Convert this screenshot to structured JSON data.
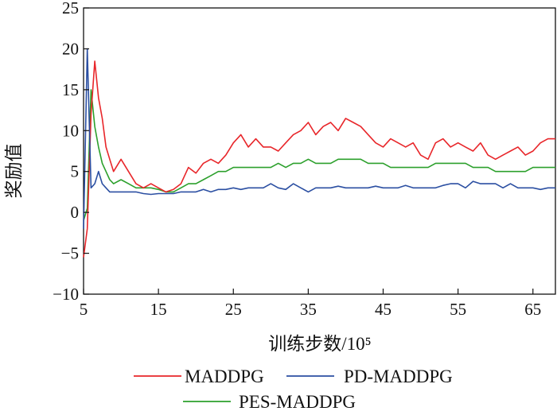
{
  "chart_data": {
    "type": "line",
    "title": "",
    "xlabel": "训练步数/10⁵",
    "ylabel": "奖励值",
    "xlim": [
      5,
      68
    ],
    "ylim": [
      -10,
      25
    ],
    "xticks": [
      5,
      15,
      25,
      35,
      45,
      55,
      65
    ],
    "yticks": [
      -10,
      -5,
      0,
      5,
      10,
      15,
      20,
      25
    ],
    "xtick_labels": [
      "5",
      "15",
      "25",
      "35",
      "45",
      "55",
      "65"
    ],
    "ytick_labels": [
      "−10",
      "−5",
      "0",
      "5",
      "10",
      "15",
      "20",
      "25"
    ],
    "grid": false,
    "legend_position": "bottom",
    "x": [
      5,
      5.5,
      6,
      6.5,
      7,
      7.5,
      8,
      8.5,
      9,
      10,
      11,
      12,
      13,
      14,
      15,
      16,
      17,
      18,
      19,
      20,
      21,
      22,
      23,
      24,
      25,
      26,
      27,
      28,
      29,
      30,
      31,
      32,
      33,
      34,
      35,
      36,
      37,
      38,
      39,
      40,
      41,
      42,
      43,
      44,
      45,
      46,
      47,
      48,
      49,
      50,
      51,
      52,
      53,
      54,
      55,
      56,
      57,
      58,
      59,
      60,
      61,
      62,
      63,
      64,
      65,
      66,
      67,
      68
    ],
    "series": [
      {
        "name": "MADDPG",
        "color": "#e8262a",
        "values": [
          -5.5,
          -2.0,
          12.0,
          18.5,
          14.0,
          11.5,
          8.0,
          6.5,
          5.0,
          6.5,
          5.0,
          3.5,
          3.0,
          3.5,
          3.0,
          2.5,
          2.8,
          3.5,
          5.5,
          4.8,
          6.0,
          6.5,
          6.0,
          7.0,
          8.5,
          9.5,
          8.0,
          9.0,
          8.0,
          8.0,
          7.5,
          8.5,
          9.5,
          10.0,
          11.0,
          9.5,
          10.5,
          11.0,
          10.0,
          11.5,
          11.0,
          10.5,
          9.5,
          8.5,
          8.0,
          9.0,
          8.5,
          8.0,
          8.5,
          7.0,
          6.5,
          8.5,
          9.0,
          8.0,
          8.5,
          8.0,
          7.5,
          8.5,
          7.0,
          6.5,
          7.0,
          7.5,
          8.0,
          7.0,
          7.5,
          8.5,
          9.0,
          9.0
        ]
      },
      {
        "name": "PD-MADDPG",
        "color": "#2b4fa2",
        "values": [
          -2.0,
          20.0,
          3.0,
          3.5,
          5.0,
          3.5,
          3.0,
          2.5,
          2.5,
          2.5,
          2.5,
          2.5,
          2.3,
          2.2,
          2.3,
          2.3,
          2.3,
          2.5,
          2.5,
          2.5,
          2.8,
          2.5,
          2.8,
          2.8,
          3.0,
          2.8,
          3.0,
          3.0,
          3.0,
          3.5,
          3.0,
          2.8,
          3.5,
          3.0,
          2.5,
          3.0,
          3.0,
          3.0,
          3.2,
          3.0,
          3.0,
          3.0,
          3.0,
          3.2,
          3.0,
          3.0,
          3.0,
          3.3,
          3.0,
          3.0,
          3.0,
          3.0,
          3.3,
          3.5,
          3.5,
          3.0,
          3.8,
          3.5,
          3.5,
          3.5,
          3.0,
          3.5,
          3.0,
          3.0,
          3.0,
          2.8,
          3.0,
          3.0
        ]
      },
      {
        "name": "PES-MADDPG",
        "color": "#2ca02c",
        "values": [
          -1.0,
          0.5,
          15.0,
          10.5,
          8.0,
          6.0,
          5.0,
          4.0,
          3.5,
          4.0,
          3.5,
          3.0,
          3.0,
          3.0,
          2.8,
          2.5,
          2.5,
          3.0,
          3.5,
          3.5,
          4.0,
          4.5,
          5.0,
          5.0,
          5.5,
          5.5,
          5.5,
          5.5,
          5.5,
          5.5,
          6.0,
          5.5,
          6.0,
          6.0,
          6.5,
          6.0,
          6.0,
          6.0,
          6.5,
          6.5,
          6.5,
          6.5,
          6.0,
          6.0,
          6.0,
          5.5,
          5.5,
          5.5,
          5.5,
          5.5,
          5.5,
          6.0,
          6.0,
          6.0,
          6.0,
          6.0,
          5.5,
          5.5,
          5.5,
          5.0,
          5.0,
          5.0,
          5.0,
          5.0,
          5.5,
          5.5,
          5.5,
          5.5
        ]
      }
    ]
  }
}
